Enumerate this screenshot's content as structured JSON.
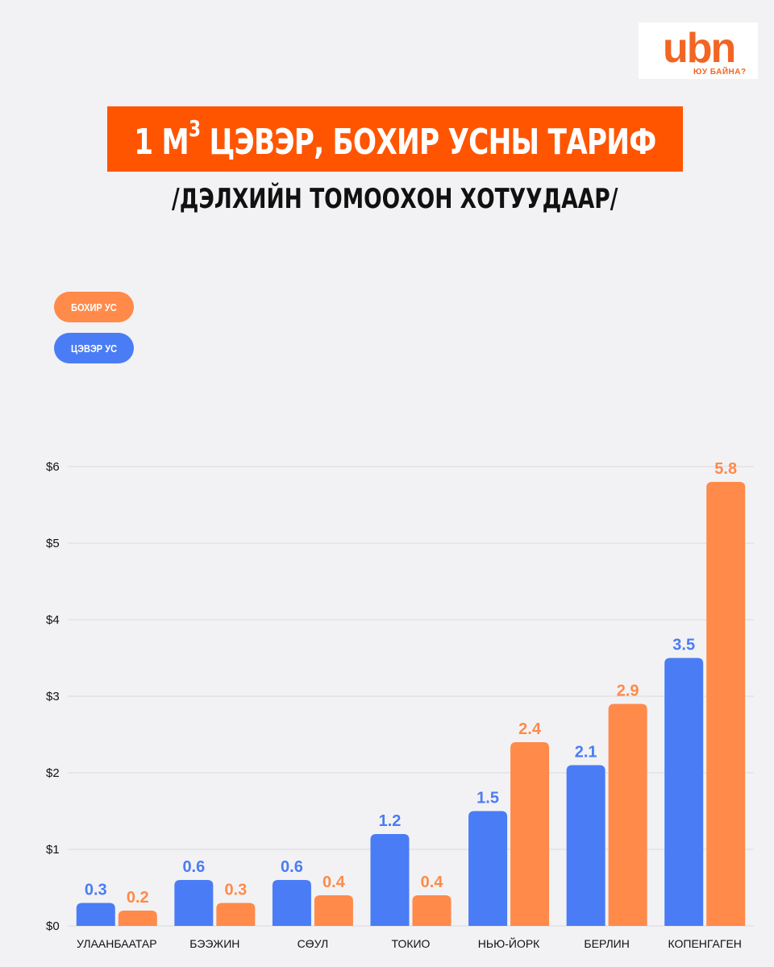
{
  "brand": {
    "logo_text": "ubn",
    "tagline": "ЮУ БАЙНА?"
  },
  "header": {
    "title_prefix": "1 М",
    "title_sup": "3",
    "title_rest": " ЦЭВЭР, БОХИР УСНЫ ТАРИФ",
    "subtitle": "/ДЭЛХИЙН ТОМООХОН ХОТУУДААР/"
  },
  "legend": [
    {
      "label": "БОХИР УС",
      "color": "#ff8a4a"
    },
    {
      "label": "ЦЭВЭР УС",
      "color": "#4a7cf5"
    }
  ],
  "colors": {
    "clean": "#4a7cf5",
    "dirty": "#ff8a4a",
    "title_band": "#ff5500",
    "grid": "#d9d9dc"
  },
  "chart_data": {
    "type": "bar",
    "categories": [
      "УЛААНБААТАР",
      "БЭЭЖИН",
      "СӨУЛ",
      "ТОКИО",
      "НЬЮ-ЙОРК",
      "БЕРЛИН",
      "КОПЕНГАГЕН"
    ],
    "series": [
      {
        "name": "ЦЭВЭР УС",
        "values": [
          0.3,
          0.6,
          0.6,
          1.2,
          1.5,
          2.1,
          3.5
        ],
        "color": "#4a7cf5"
      },
      {
        "name": "БОХИР УС",
        "values": [
          0.2,
          0.3,
          0.4,
          0.4,
          2.4,
          2.9,
          5.8
        ],
        "color": "#ff8a4a"
      }
    ],
    "yticks": [
      "$0",
      "$1",
      "$2",
      "$3",
      "$4",
      "$5",
      "$6"
    ],
    "ylim": [
      0,
      6
    ],
    "grid": true,
    "legend_position": "top-left",
    "data_labels": true
  }
}
